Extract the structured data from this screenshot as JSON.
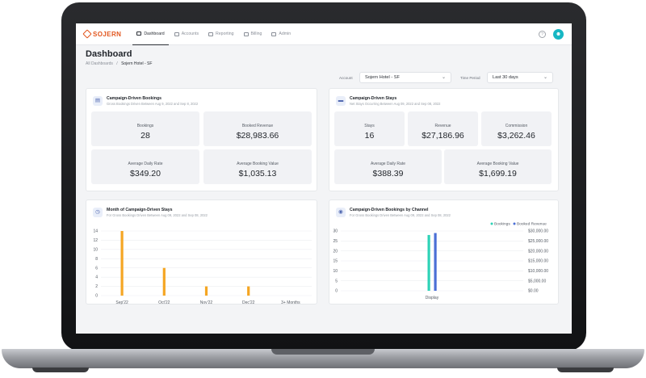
{
  "brand": "SOJERN",
  "nav": [
    {
      "label": "Dashboard",
      "active": true
    },
    {
      "label": "Accounts"
    },
    {
      "label": "Reporting"
    },
    {
      "label": "Billing"
    },
    {
      "label": "Admin"
    }
  ],
  "page_title": "Dashboard",
  "breadcrumb": {
    "root": "All Dashboards",
    "sep": "/",
    "current": "Sojern Hotel - SF"
  },
  "filters": {
    "account_label": "Account",
    "account_value": "Sojern Hotel - SF",
    "period_label": "Time Period",
    "period_value": "Last 30 days"
  },
  "bookings_card": {
    "title": "Campaign-Driven Bookings",
    "subtitle": "Gross Bookings Driven Between Aug 9, 2022 and Sep 8, 2022",
    "stats": [
      {
        "label": "Bookings",
        "value": "28"
      },
      {
        "label": "Booked Revenue",
        "value": "$28,983.66"
      },
      {
        "label": "Average Daily Rate",
        "value": "$349.20"
      },
      {
        "label": "Average Booking Value",
        "value": "$1,035.13"
      }
    ]
  },
  "stays_card": {
    "title": "Campaign-Driven Stays",
    "subtitle": "Net Stays Occurring Between Aug 09, 2022 and Sep 08, 2022",
    "stats": [
      {
        "label": "Stays",
        "value": "16"
      },
      {
        "label": "Revenue",
        "value": "$27,186.96"
      },
      {
        "label": "Commission",
        "value": "$3,262.46"
      },
      {
        "label": "Average Daily Rate",
        "value": "$388.39"
      },
      {
        "label": "Average Booking Value",
        "value": "$1,699.19"
      }
    ]
  },
  "month_card": {
    "title": "Month of Campaign-Driven Stays",
    "subtitle": "For Gross Bookings Driven Between Aug 09, 2022 and Sep 08, 2022"
  },
  "channel_card": {
    "title": "Campaign-Driven Bookings by Channel",
    "subtitle": "For Gross Bookings Driven Between Aug 09, 2022 and Sep 08, 2022"
  },
  "colors": {
    "accent": "#e2561e",
    "bar_orange": "#f5a623",
    "teal": "#2ed3b7",
    "blue": "#4b6fd6"
  },
  "chart_data": [
    {
      "type": "bar",
      "categories": [
        "Sep'22",
        "Oct'22",
        "Nov'22",
        "Dec'22",
        "3+ Months"
      ],
      "values": [
        14,
        6,
        2,
        2,
        0
      ],
      "ylim": [
        0,
        14
      ],
      "yticks": [
        "0",
        "2",
        "4",
        "6",
        "8",
        "10",
        "12",
        "14"
      ],
      "grid": true
    },
    {
      "type": "bar",
      "categories": [
        "Display"
      ],
      "series": [
        {
          "name": "Bookings",
          "values": [
            28
          ],
          "axis": "left",
          "color": "#2ed3b7"
        },
        {
          "name": "Booked Revenue",
          "values": [
            28983.66
          ],
          "axis": "right",
          "color": "#4b6fd6"
        }
      ],
      "ylim_left": [
        0,
        30
      ],
      "ylim_right": [
        0,
        30000
      ],
      "yticks_left": [
        "0",
        "5",
        "10",
        "15",
        "20",
        "25",
        "30"
      ],
      "yticks_right": [
        "$0.00",
        "$5,000.00",
        "$10,000.00",
        "$15,000.00",
        "$20,000.00",
        "$25,000.00",
        "$30,000.00"
      ],
      "legend": "top-right",
      "grid": true
    }
  ]
}
